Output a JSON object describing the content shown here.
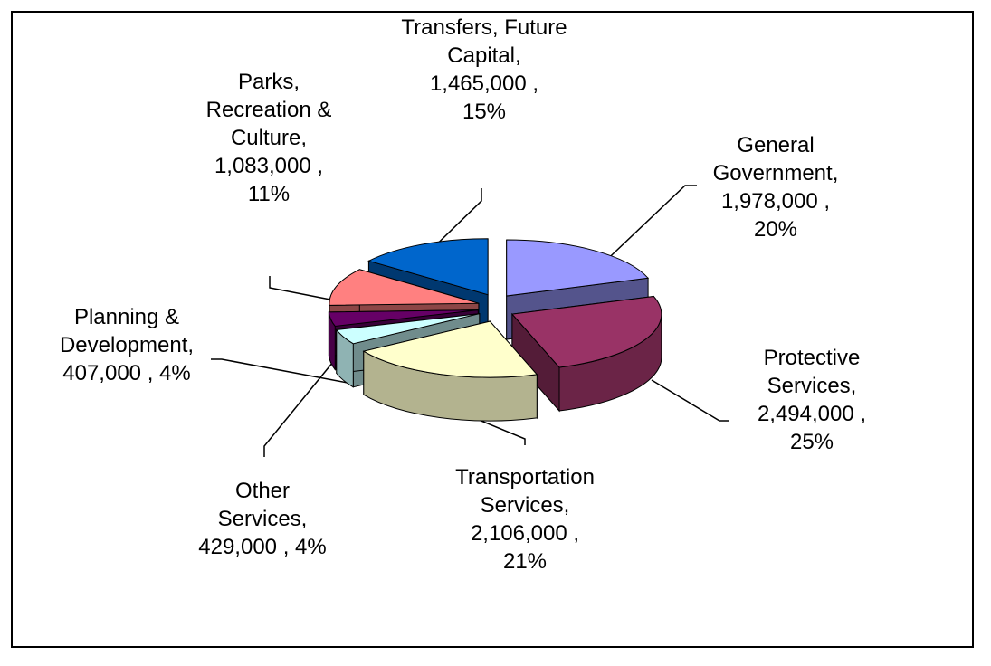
{
  "chart_data": {
    "type": "pie",
    "categories": [
      "General Government",
      "Protective Services",
      "Transportation Services",
      "Other Services",
      "Planning & Development",
      "Parks, Recreation & Culture",
      "Transfers, Future Capital"
    ],
    "values": [
      1978000,
      2494000,
      2106000,
      429000,
      407000,
      1083000,
      1465000
    ],
    "value_labels": [
      "1,978,000",
      "2,494,000",
      "2,106,000",
      "429,000",
      "407,000",
      "1,083,000",
      "1,465,000"
    ],
    "percents": [
      20,
      25,
      21,
      4,
      4,
      11,
      15
    ],
    "percent_labels": [
      "20%",
      "25%",
      "21%",
      "4%",
      "4%",
      "11%",
      "15%"
    ],
    "colors": [
      "#9999ff",
      "#993366",
      "#ffffcc",
      "#ccffff",
      "#660066",
      "#ff8080",
      "#0066cc"
    ]
  }
}
